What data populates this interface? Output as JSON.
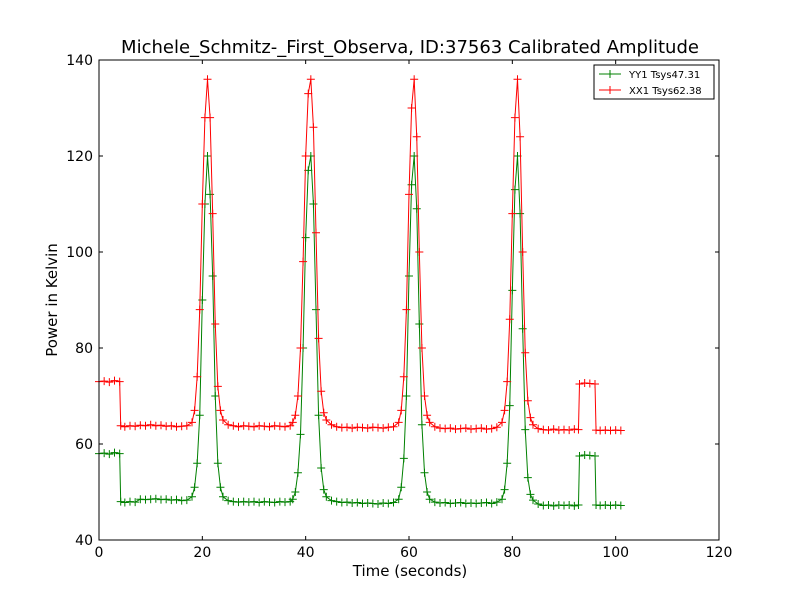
{
  "chart_data": {
    "type": "line",
    "title": "Michele_Schmitz-_First_Observa, ID:37563 Calibrated Amplitude",
    "xlabel": "Time (seconds)",
    "ylabel": "Power in Kelvin",
    "xlim": [
      0,
      120
    ],
    "ylim": [
      40,
      140
    ],
    "xticks": [
      0,
      20,
      40,
      60,
      80,
      100,
      120
    ],
    "yticks": [
      40,
      60,
      80,
      100,
      120,
      140
    ],
    "grid": false,
    "legend_position": "top-right",
    "marker": "+",
    "series": [
      {
        "name": "YY1 Tsys47.31",
        "color": "#008000",
        "points": [
          [
            0,
            58
          ],
          [
            1,
            58.1
          ],
          [
            2,
            57.9
          ],
          [
            3,
            58.2
          ],
          [
            4,
            58
          ],
          [
            4.2,
            48
          ],
          [
            5,
            47.8
          ],
          [
            6,
            48
          ],
          [
            7,
            47.9
          ],
          [
            8,
            48.5
          ],
          [
            9,
            48.4
          ],
          [
            10,
            48.5
          ],
          [
            11,
            48.6
          ],
          [
            12,
            48.4
          ],
          [
            13,
            48.5
          ],
          [
            14,
            48.3
          ],
          [
            15,
            48.4
          ],
          [
            16,
            48.2
          ],
          [
            17,
            48.3
          ],
          [
            18,
            49
          ],
          [
            18.5,
            51
          ],
          [
            19,
            56
          ],
          [
            19.5,
            66
          ],
          [
            20,
            90
          ],
          [
            20.5,
            110
          ],
          [
            21,
            120
          ],
          [
            21.5,
            112
          ],
          [
            22,
            95
          ],
          [
            22.5,
            70
          ],
          [
            23,
            56
          ],
          [
            23.5,
            51
          ],
          [
            24,
            49
          ],
          [
            25,
            48.2
          ],
          [
            26,
            48
          ],
          [
            27,
            47.9
          ],
          [
            28,
            48
          ],
          [
            29,
            47.9
          ],
          [
            30,
            48
          ],
          [
            31,
            47.8
          ],
          [
            32,
            48
          ],
          [
            33,
            47.9
          ],
          [
            34,
            47.8
          ],
          [
            35,
            48
          ],
          [
            36,
            47.9
          ],
          [
            37,
            48
          ],
          [
            37.5,
            48.5
          ],
          [
            38,
            50
          ],
          [
            38.5,
            54
          ],
          [
            39,
            62
          ],
          [
            39.5,
            80
          ],
          [
            40,
            103
          ],
          [
            40.5,
            117
          ],
          [
            41,
            120
          ],
          [
            41.5,
            110
          ],
          [
            42,
            88
          ],
          [
            42.5,
            66
          ],
          [
            43,
            55
          ],
          [
            43.5,
            50.5
          ],
          [
            44,
            49
          ],
          [
            45,
            48.2
          ],
          [
            46,
            48
          ],
          [
            47,
            47.8
          ],
          [
            48,
            47.9
          ],
          [
            49,
            47.7
          ],
          [
            50,
            47.8
          ],
          [
            51,
            47.6
          ],
          [
            52,
            47.7
          ],
          [
            53,
            47.6
          ],
          [
            54,
            47.5
          ],
          [
            55,
            47.7
          ],
          [
            56,
            47.6
          ],
          [
            57,
            47.8
          ],
          [
            58,
            48.5
          ],
          [
            58.5,
            51
          ],
          [
            59,
            57
          ],
          [
            59.5,
            70
          ],
          [
            60,
            95
          ],
          [
            60.5,
            114
          ],
          [
            61,
            120
          ],
          [
            61.5,
            109
          ],
          [
            62,
            85
          ],
          [
            62.5,
            64
          ],
          [
            63,
            54
          ],
          [
            63.5,
            50
          ],
          [
            64,
            48.5
          ],
          [
            65,
            47.9
          ],
          [
            66,
            47.7
          ],
          [
            67,
            47.8
          ],
          [
            68,
            47.6
          ],
          [
            69,
            47.7
          ],
          [
            70,
            47.8
          ],
          [
            71,
            47.6
          ],
          [
            72,
            47.7
          ],
          [
            73,
            47.6
          ],
          [
            74,
            47.7
          ],
          [
            75,
            47.8
          ],
          [
            76,
            47.6
          ],
          [
            77,
            47.9
          ],
          [
            78,
            48.5
          ],
          [
            78.5,
            50.5
          ],
          [
            79,
            56
          ],
          [
            79.5,
            68
          ],
          [
            80,
            92
          ],
          [
            80.5,
            113
          ],
          [
            81,
            120
          ],
          [
            81.5,
            108
          ],
          [
            82,
            84
          ],
          [
            82.5,
            63
          ],
          [
            83,
            53
          ],
          [
            83.5,
            49.5
          ],
          [
            84,
            48.3
          ],
          [
            85,
            47.5
          ],
          [
            86,
            47.2
          ],
          [
            87,
            47.3
          ],
          [
            88,
            47.1
          ],
          [
            89,
            47.3
          ],
          [
            90,
            47.2
          ],
          [
            91,
            47.3
          ],
          [
            92,
            47.1
          ],
          [
            92.8,
            47.3
          ],
          [
            93,
            57.5
          ],
          [
            94,
            57.7
          ],
          [
            95,
            57.6
          ],
          [
            96,
            57.5
          ],
          [
            96.2,
            47.3
          ],
          [
            97,
            47.2
          ],
          [
            98,
            47.3
          ],
          [
            99,
            47.2
          ],
          [
            100,
            47.3
          ],
          [
            101,
            47.2
          ]
        ]
      },
      {
        "name": "XX1 Tsys62.38",
        "color": "#ff0000",
        "points": [
          [
            0,
            73
          ],
          [
            1,
            73.1
          ],
          [
            2,
            72.9
          ],
          [
            3,
            73.2
          ],
          [
            4,
            73
          ],
          [
            4.2,
            63.8
          ],
          [
            5,
            63.6
          ],
          [
            6,
            63.8
          ],
          [
            7,
            63.7
          ],
          [
            8,
            63.9
          ],
          [
            9,
            63.8
          ],
          [
            10,
            64
          ],
          [
            11,
            63.8
          ],
          [
            12,
            63.9
          ],
          [
            13,
            63.7
          ],
          [
            14,
            63.8
          ],
          [
            15,
            63.6
          ],
          [
            16,
            63.7
          ],
          [
            17,
            63.8
          ],
          [
            18,
            64.5
          ],
          [
            18.5,
            67
          ],
          [
            19,
            74
          ],
          [
            19.5,
            88
          ],
          [
            20,
            110
          ],
          [
            20.5,
            128
          ],
          [
            21,
            136
          ],
          [
            21.5,
            128
          ],
          [
            22,
            108
          ],
          [
            22.5,
            85
          ],
          [
            23,
            72
          ],
          [
            23.5,
            67
          ],
          [
            24,
            65
          ],
          [
            25,
            64
          ],
          [
            26,
            63.8
          ],
          [
            27,
            63.6
          ],
          [
            28,
            63.8
          ],
          [
            29,
            63.7
          ],
          [
            30,
            63.6
          ],
          [
            31,
            63.8
          ],
          [
            32,
            63.7
          ],
          [
            33,
            63.6
          ],
          [
            34,
            63.8
          ],
          [
            35,
            63.7
          ],
          [
            36,
            63.6
          ],
          [
            37,
            63.8
          ],
          [
            37.5,
            64.5
          ],
          [
            38,
            66
          ],
          [
            38.5,
            70
          ],
          [
            39,
            80
          ],
          [
            39.5,
            98
          ],
          [
            40,
            120
          ],
          [
            40.5,
            133
          ],
          [
            41,
            136
          ],
          [
            41.5,
            126
          ],
          [
            42,
            104
          ],
          [
            42.5,
            82
          ],
          [
            43,
            71
          ],
          [
            43.5,
            66.5
          ],
          [
            44,
            65
          ],
          [
            45,
            64
          ],
          [
            46,
            63.6
          ],
          [
            47,
            63.4
          ],
          [
            48,
            63.5
          ],
          [
            49,
            63.3
          ],
          [
            50,
            63.5
          ],
          [
            51,
            63.4
          ],
          [
            52,
            63.3
          ],
          [
            53,
            63.5
          ],
          [
            54,
            63.4
          ],
          [
            55,
            63.3
          ],
          [
            56,
            63.5
          ],
          [
            57,
            63.6
          ],
          [
            58,
            64.5
          ],
          [
            58.5,
            67
          ],
          [
            59,
            74
          ],
          [
            59.5,
            88
          ],
          [
            60,
            112
          ],
          [
            60.5,
            130
          ],
          [
            61,
            136
          ],
          [
            61.5,
            124
          ],
          [
            62,
            100
          ],
          [
            62.5,
            80
          ],
          [
            63,
            70
          ],
          [
            63.5,
            66
          ],
          [
            64,
            64.5
          ],
          [
            65,
            63.6
          ],
          [
            66,
            63.3
          ],
          [
            67,
            63.2
          ],
          [
            68,
            63.3
          ],
          [
            69,
            63.1
          ],
          [
            70,
            63.2
          ],
          [
            71,
            63.3
          ],
          [
            72,
            63.1
          ],
          [
            73,
            63.2
          ],
          [
            74,
            63.3
          ],
          [
            75,
            63.1
          ],
          [
            76,
            63.2
          ],
          [
            77,
            63.5
          ],
          [
            78,
            64.5
          ],
          [
            78.5,
            67
          ],
          [
            79,
            73
          ],
          [
            79.5,
            86
          ],
          [
            80,
            108
          ],
          [
            80.5,
            128
          ],
          [
            81,
            136
          ],
          [
            81.5,
            124
          ],
          [
            82,
            100
          ],
          [
            82.5,
            79
          ],
          [
            83,
            69
          ],
          [
            83.5,
            65.5
          ],
          [
            84,
            64
          ],
          [
            85,
            63.2
          ],
          [
            86,
            63
          ],
          [
            87,
            62.9
          ],
          [
            88,
            63.1
          ],
          [
            89,
            62.9
          ],
          [
            90,
            63
          ],
          [
            91,
            62.9
          ],
          [
            92,
            63.1
          ],
          [
            92.8,
            63
          ],
          [
            93,
            72.5
          ],
          [
            94,
            72.7
          ],
          [
            95,
            72.6
          ],
          [
            96,
            72.5
          ],
          [
            96.2,
            62.9
          ],
          [
            97,
            62.8
          ],
          [
            98,
            62.9
          ],
          [
            99,
            62.8
          ],
          [
            100,
            62.9
          ],
          [
            101,
            62.8
          ]
        ]
      }
    ]
  }
}
